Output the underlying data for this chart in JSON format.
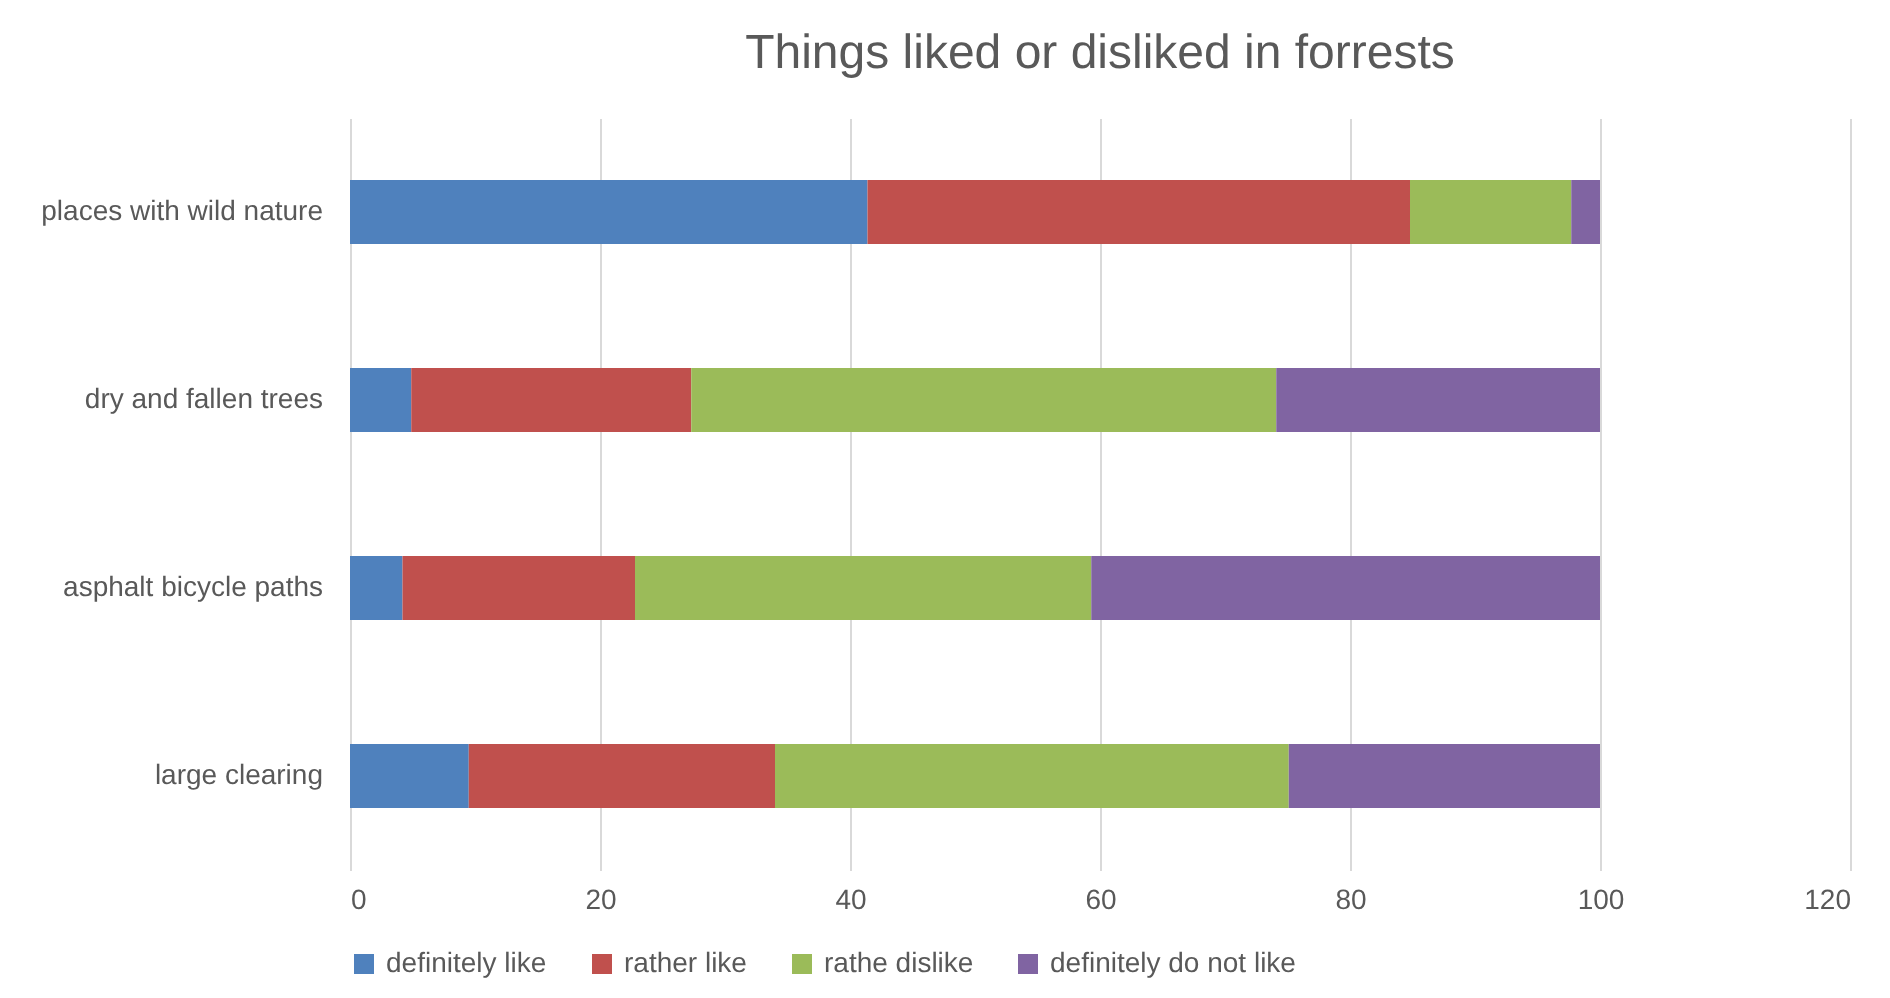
{
  "chart_data": {
    "type": "bar",
    "orientation": "horizontal",
    "stacked": true,
    "title": "Things liked or disliked in forrests",
    "categories": [
      "places with wild nature",
      "dry and fallen trees",
      "asphalt bicycle paths",
      "large clearing"
    ],
    "series": [
      {
        "name": "definitely like",
        "color": "#4f81bd",
        "values": [
          41.4,
          4.9,
          4.2,
          9.5
        ]
      },
      {
        "name": "rather like",
        "color": "#c0504d",
        "values": [
          43.4,
          22.4,
          18.6,
          24.5
        ]
      },
      {
        "name": "rathe dislike",
        "color": "#9bbb59",
        "values": [
          12.9,
          46.8,
          36.5,
          41.1
        ]
      },
      {
        "name": "definitely do not like",
        "color": "#8064a2",
        "values": [
          2.3,
          25.9,
          40.7,
          24.9
        ]
      }
    ],
    "xlim": [
      0,
      120
    ],
    "xticks": [
      0,
      20,
      40,
      60,
      80,
      100,
      120
    ],
    "grid": "x",
    "legend": "bottom"
  }
}
